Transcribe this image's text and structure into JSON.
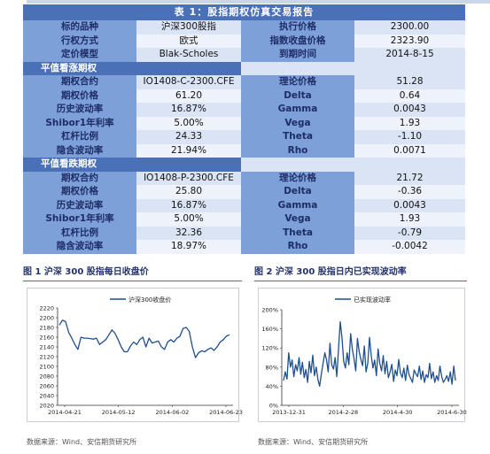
{
  "report": {
    "title": "表 1：股指期权仿真交易报告",
    "header_rows": [
      {
        "l1": "标的品种",
        "v1": "沪深300股指",
        "l2": "执行价格",
        "v2": "2300.00"
      },
      {
        "l1": "行权方式",
        "v1": "欧式",
        "l2": "指数收盘价格",
        "v2": "2323.90"
      },
      {
        "l1": "定价模型",
        "v1": "Blak-Scholes",
        "l2": "到期时间",
        "v2": "2014-8-15"
      }
    ],
    "sections": [
      {
        "title": "平值看涨期权",
        "rows": [
          {
            "l1": "期权合约",
            "v1": "IO1408-C-2300.CFE",
            "l2": "理论价格",
            "v2": "51.28"
          },
          {
            "l1": "期权价格",
            "v1": "61.20",
            "l2": "Delta",
            "v2": "0.64"
          },
          {
            "l1": "历史波动率",
            "v1": "16.87%",
            "l2": "Gamma",
            "v2": "0.0043"
          },
          {
            "l1": "Shibor1年利率",
            "v1": "5.00%",
            "l2": "Vega",
            "v2": "1.93"
          },
          {
            "l1": "杠杆比例",
            "v1": "24.33",
            "l2": "Theta",
            "v2": "-1.10"
          },
          {
            "l1": "隐含波动率",
            "v1": "21.94%",
            "l2": "Rho",
            "v2": "0.0071"
          }
        ]
      },
      {
        "title": "平值看跌期权",
        "rows": [
          {
            "l1": "期权合约",
            "v1": "IO1408-P-2300.CFE",
            "l2": "理论价格",
            "v2": "21.72"
          },
          {
            "l1": "期权价格",
            "v1": "25.80",
            "l2": "Delta",
            "v2": "-0.36"
          },
          {
            "l1": "历史波动率",
            "v1": "16.87%",
            "l2": "Gamma",
            "v2": "0.0043"
          },
          {
            "l1": "Shibor1年利率",
            "v1": "5.00%",
            "l2": "Vega",
            "v2": "1.93"
          },
          {
            "l1": "杠杆比例",
            "v1": "32.36",
            "l2": "Theta",
            "v2": "-0.79"
          },
          {
            "l1": "隐含波动率",
            "v1": "18.97%",
            "l2": "Rho",
            "v2": "-0.0042"
          }
        ]
      }
    ]
  },
  "figures": [
    {
      "title": "图 1  沪深 300 股指每日收盘价",
      "source": "数据来源：Wind、安信期货研究所"
    },
    {
      "title": "图 2  沪深 300 股指日内已实现波动率",
      "source": "数据来源：Wind、安信期货研究所"
    }
  ],
  "colors": {
    "header_blue": "#4a70b8",
    "label_blue": "#7da0d9",
    "value_light": "#dbe4f4",
    "line_blue": "#1f4f8f"
  },
  "chart_data": [
    {
      "type": "line",
      "title": "",
      "legend": "沪深300收盘价",
      "ylim": [
        2020,
        2220
      ],
      "y_ticks": [
        "2220",
        "2200",
        "2180",
        "2160",
        "2140",
        "2120",
        "2100",
        "2080",
        "2060",
        "2040",
        "2020"
      ],
      "x_ticks": [
        "2014-04-21",
        "2014-05-12",
        "2014-06-02",
        "2014-06-23"
      ],
      "series": [
        {
          "name": "沪深300收盘价",
          "values": [
            2185,
            2195,
            2192,
            2170,
            2158,
            2145,
            2135,
            2160,
            2158,
            2158,
            2157,
            2156,
            2158,
            2145,
            2150,
            2155,
            2165,
            2175,
            2168,
            2155,
            2140,
            2130,
            2130,
            2142,
            2150,
            2145,
            2155,
            2160,
            2140,
            2158,
            2148,
            2150,
            2152,
            2140,
            2135,
            2150,
            2155,
            2150,
            2158,
            2162,
            2178,
            2180,
            2172,
            2140,
            2118,
            2128,
            2132,
            2130,
            2135,
            2138,
            2133,
            2140,
            2150,
            2155,
            2162,
            2165
          ]
        }
      ]
    },
    {
      "type": "line",
      "title": "",
      "legend": "已实现波动率",
      "ylim": [
        0,
        200
      ],
      "y_ticks": [
        "200%",
        "160%",
        "120%",
        "80%",
        "40%",
        "0%"
      ],
      "x_ticks": [
        "2013-12-31",
        "2014-2-28",
        "2014-4-30",
        "2014-6-30"
      ],
      "series": [
        {
          "name": "已实现波动率",
          "values": [
            52,
            70,
            55,
            110,
            80,
            95,
            60,
            85,
            72,
            100,
            65,
            90,
            58,
            75,
            48,
            92,
            68,
            105,
            62,
            80,
            54,
            40,
            66,
            88,
            110,
            95,
            70,
            130,
            85,
            76,
            100,
            60,
            120,
            175,
            140,
            92,
            78,
            110,
            85,
            150,
            118,
            98,
            72,
            140,
            112,
            96,
            83,
            124,
            70,
            88,
            142,
            105,
            78,
            95,
            62,
            118,
            88,
            72,
            104,
            66,
            92,
            58,
            70,
            86,
            50,
            74,
            62,
            96,
            68,
            58,
            78,
            52,
            84,
            64,
            56,
            48,
            74,
            66,
            60,
            82,
            54,
            72,
            48,
            64,
            58,
            88,
            56,
            70,
            48,
            62,
            52,
            82,
            60,
            48,
            54,
            62,
            50,
            70,
            44,
            82,
            52
          ]
        }
      ]
    }
  ]
}
